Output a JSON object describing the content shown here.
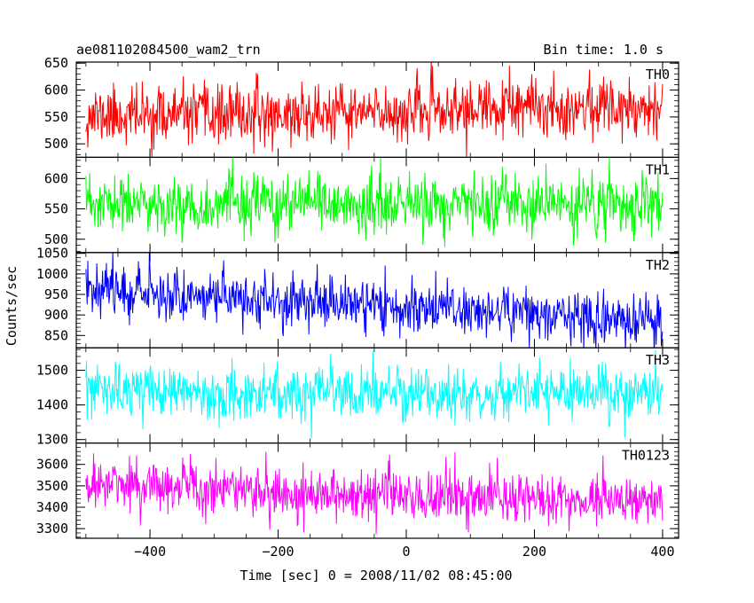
{
  "header": {
    "title": "ae081102084500_wam2_trn",
    "bin_time": "Bin time: 1.0 s"
  },
  "axes": {
    "ylabel": "Counts/sec",
    "xlabel": "Time [sec] 0 = 2008/11/02 08:45:00",
    "xlim": [
      -515,
      425
    ],
    "xticks_major": [
      -400,
      -200,
      0,
      200,
      400
    ],
    "xtick_labels": [
      "−400",
      "−200",
      "0",
      "200",
      "400"
    ],
    "xticks_minor_step": 50
  },
  "chart_data": [
    {
      "type": "line",
      "panel": "TH0",
      "label": "TH0",
      "color": "#ff0000",
      "ylim": [
        475,
        652
      ],
      "yticks": [
        500,
        550,
        600,
        650
      ],
      "ytick_labels": [
        "500",
        "550",
        "600",
        "650"
      ],
      "x_range": [
        -500,
        400
      ],
      "bin_sec": 1,
      "trend": [
        [
          -500,
          553
        ],
        [
          -300,
          553
        ],
        [
          -100,
          555
        ],
        [
          100,
          563
        ],
        [
          300,
          570
        ],
        [
          400,
          572
        ]
      ],
      "noise_sd": 27,
      "seed": 11
    },
    {
      "type": "line",
      "panel": "TH1",
      "label": "TH1",
      "color": "#00ff00",
      "ylim": [
        478,
        635
      ],
      "yticks": [
        500,
        550,
        600
      ],
      "ytick_labels": [
        "500",
        "550",
        "600"
      ],
      "x_range": [
        -500,
        400
      ],
      "bin_sec": 1,
      "trend": [
        [
          -500,
          556
        ],
        [
          0,
          556
        ],
        [
          400,
          556
        ]
      ],
      "noise_sd": 24,
      "seed": 23
    },
    {
      "type": "line",
      "panel": "TH2",
      "label": "TH2",
      "color": "#0000ff",
      "ylim": [
        820,
        1052
      ],
      "yticks": [
        850,
        900,
        950,
        1000,
        1050
      ],
      "ytick_labels": [
        "850",
        "900",
        "950",
        "1000",
        "1050"
      ],
      "x_range": [
        -500,
        400
      ],
      "bin_sec": 1,
      "trend": [
        [
          -500,
          975
        ],
        [
          -400,
          955
        ],
        [
          -200,
          935
        ],
        [
          0,
          920
        ],
        [
          200,
          905
        ],
        [
          400,
          878
        ]
      ],
      "noise_sd": 32,
      "seed": 37
    },
    {
      "type": "line",
      "panel": "TH3",
      "label": "TH3",
      "color": "#00ffff",
      "ylim": [
        1290,
        1565
      ],
      "yticks": [
        1300,
        1400,
        1500
      ],
      "ytick_labels": [
        "1300",
        "1400",
        "1500"
      ],
      "x_range": [
        -500,
        400
      ],
      "bin_sec": 1,
      "trend": [
        [
          -500,
          1440
        ],
        [
          0,
          1430
        ],
        [
          400,
          1435
        ]
      ],
      "noise_sd": 38,
      "seed": 53
    },
    {
      "type": "line",
      "panel": "TH0123",
      "label": "TH0123",
      "color": "#ff00ff",
      "ylim": [
        3255,
        3700
      ],
      "yticks": [
        3300,
        3400,
        3500,
        3600
      ],
      "ytick_labels": [
        "3300",
        "3400",
        "3500",
        "3600"
      ],
      "x_range": [
        -500,
        400
      ],
      "bin_sec": 1,
      "trend": [
        [
          -500,
          3510
        ],
        [
          -300,
          3490
        ],
        [
          -100,
          3460
        ],
        [
          100,
          3445
        ],
        [
          400,
          3435
        ]
      ],
      "noise_sd": 62,
      "seed": 71
    }
  ]
}
